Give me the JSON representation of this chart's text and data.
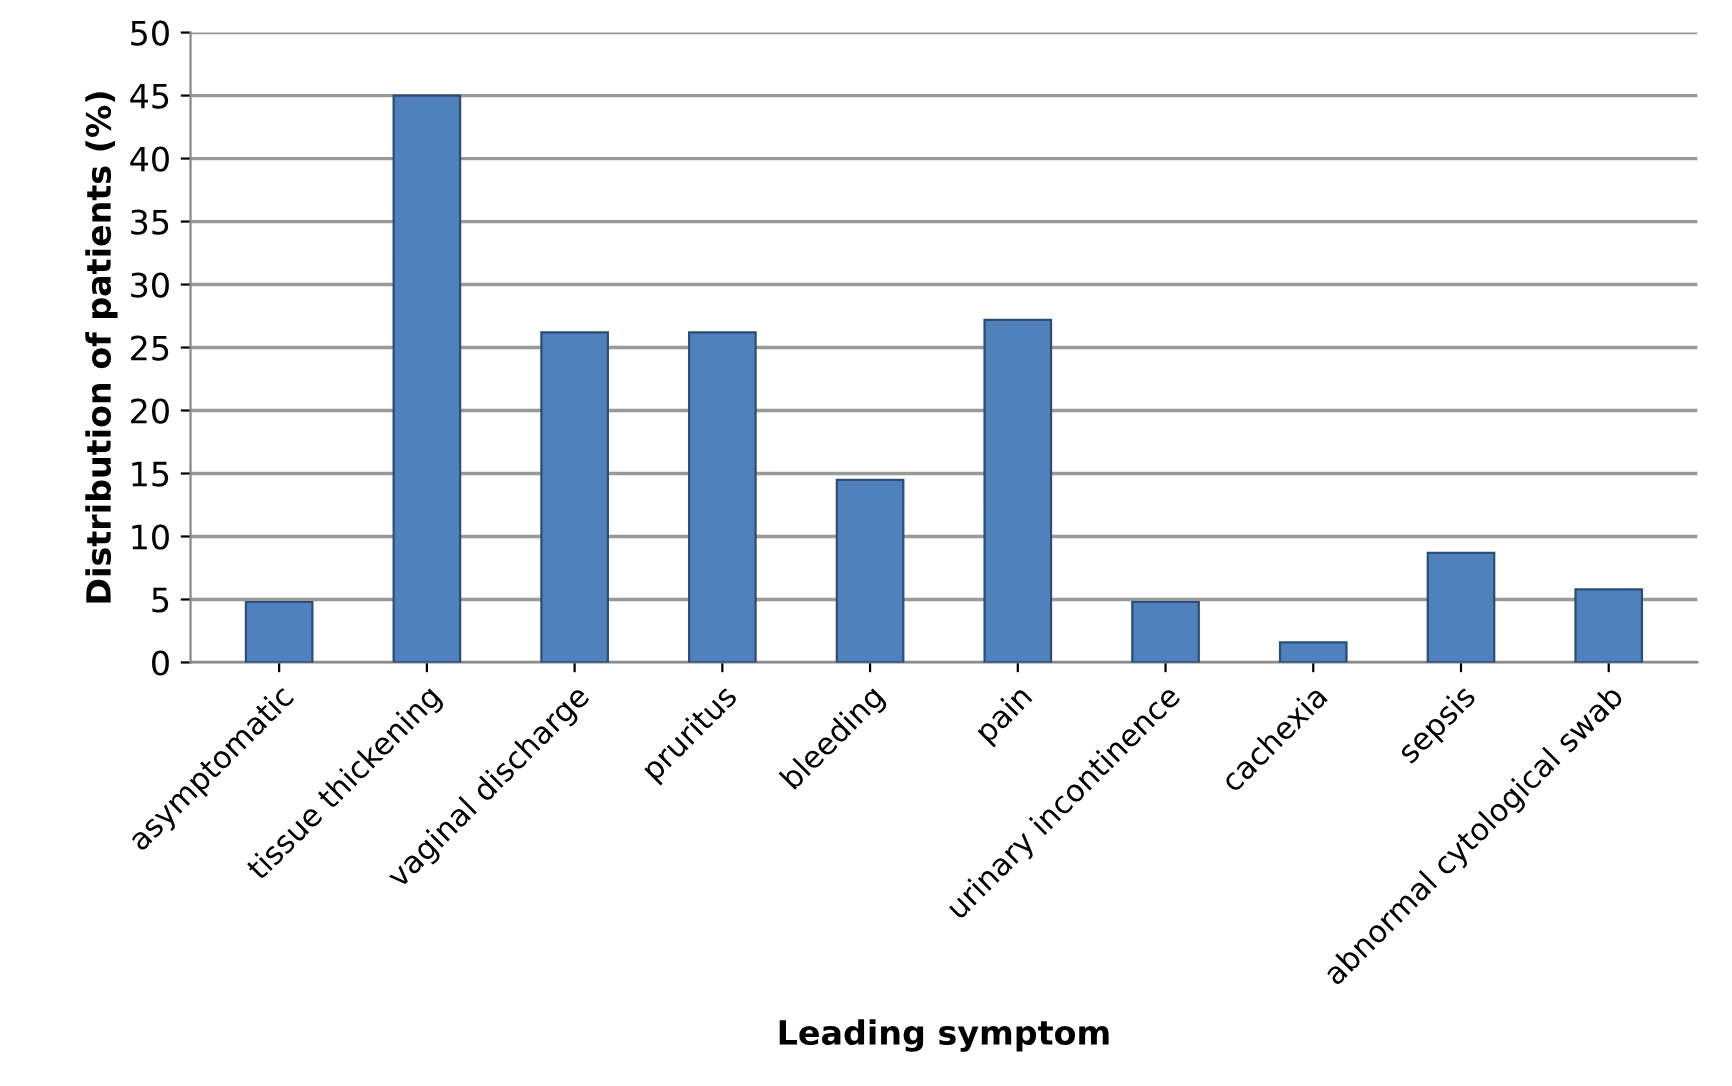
{
  "chart_data": {
    "type": "bar",
    "xlabel": "Leading symptom",
    "ylabel": "Distribution of patients (%)",
    "categories": [
      "asymptomatic",
      "tissue thickening",
      "vaginal discharge",
      "pruritus",
      "bleeding",
      "pain",
      "urinary incontinence",
      "cachexia",
      "sepsis",
      "abnormal cytological swab"
    ],
    "values": [
      4.8,
      45,
      26.2,
      26.2,
      14.5,
      27.2,
      4.8,
      1.6,
      8.7,
      5.8
    ],
    "color": "#4f81bd",
    "ylim": [
      0,
      50
    ],
    "yticks": [
      0,
      5,
      10,
      15,
      20,
      25,
      30,
      35,
      40,
      45,
      50
    ],
    "grid": "y"
  }
}
